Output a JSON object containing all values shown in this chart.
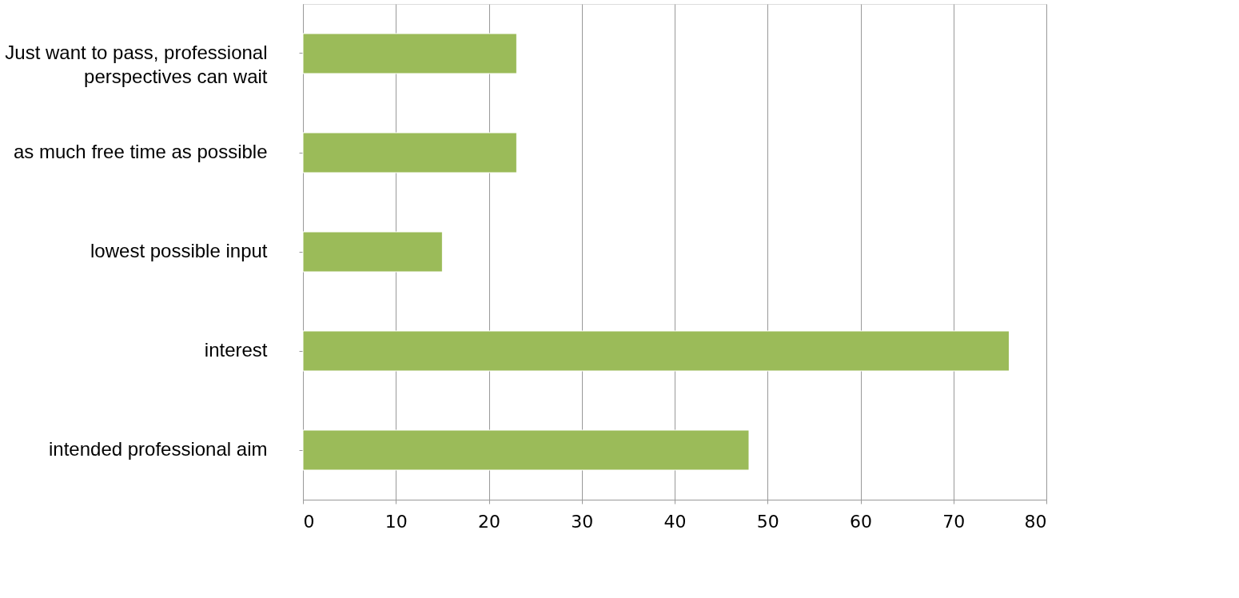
{
  "chart_data": {
    "type": "bar",
    "orientation": "horizontal",
    "categories": [
      "Just want to pass, professional\nperspectives can wait",
      "as much free time as possible",
      "lowest possible input",
      "interest",
      "intended professional aim"
    ],
    "values": [
      23,
      23,
      15,
      76,
      48
    ],
    "color": "#9bbb59",
    "xlim": [
      0,
      80
    ],
    "xticks": [
      0,
      10,
      20,
      30,
      40,
      50,
      60,
      70,
      80
    ],
    "grid": "x"
  }
}
